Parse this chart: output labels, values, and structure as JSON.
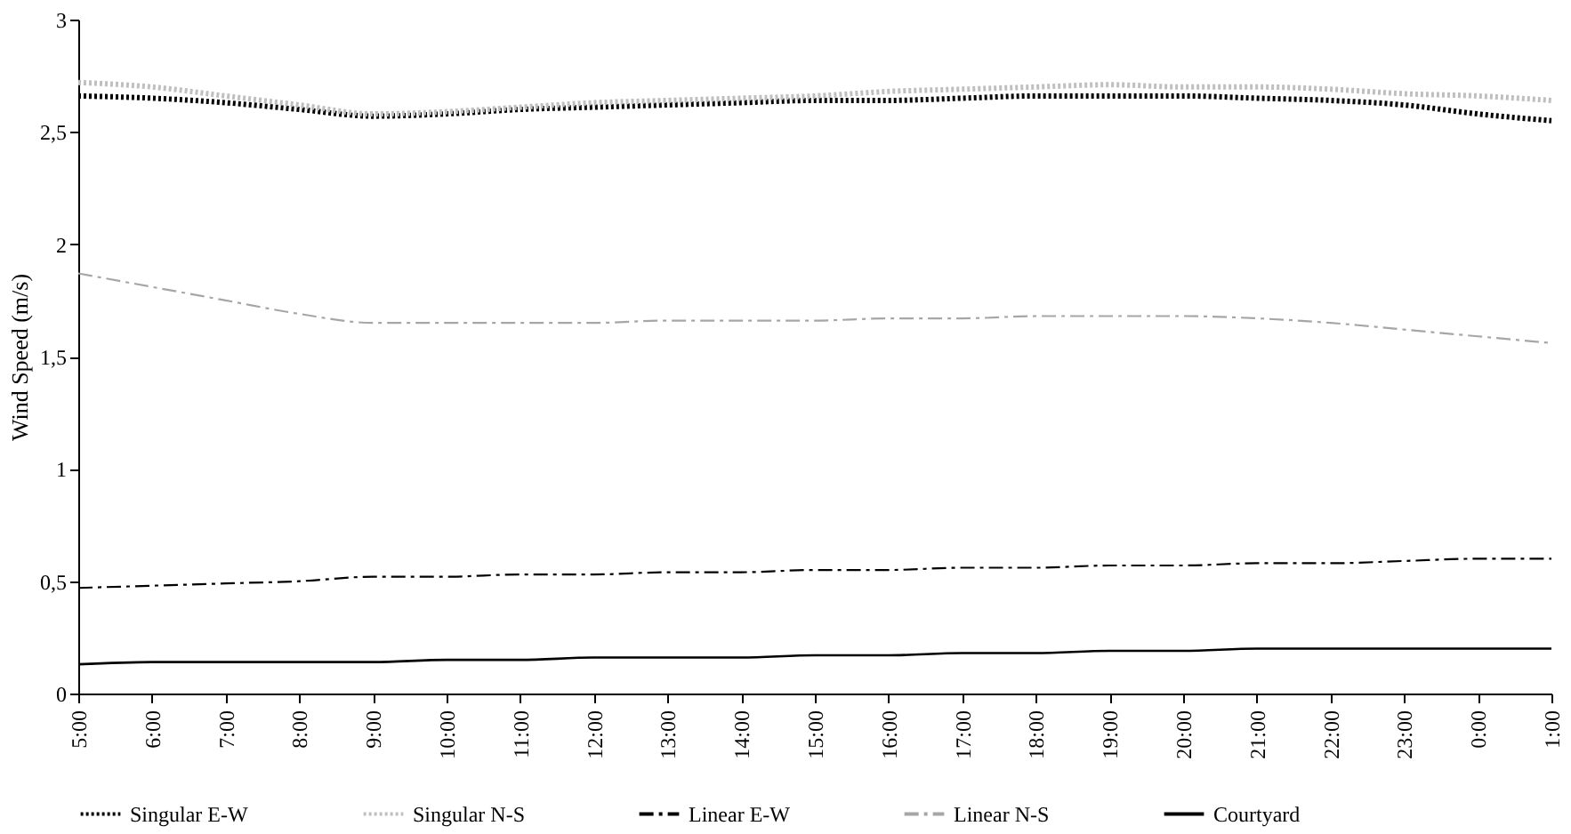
{
  "chart_data": {
    "type": "line",
    "ylabel": "Wind Speed (m/s)",
    "categories": [
      "5:00",
      "6:00",
      "7:00",
      "8:00",
      "9:00",
      "10:00",
      "11:00",
      "12:00",
      "13:00",
      "14:00",
      "15:00",
      "16:00",
      "17:00",
      "18:00",
      "19:00",
      "20:00",
      "21:00",
      "22:00",
      "23:00",
      "0:00",
      "1:00"
    ],
    "series": [
      {
        "name": "Singular E-W",
        "color": "#000000",
        "line_style": "dotted",
        "values": [
          2.66,
          2.65,
          2.63,
          2.6,
          2.57,
          2.58,
          2.6,
          2.61,
          2.62,
          2.63,
          2.64,
          2.64,
          2.65,
          2.66,
          2.66,
          2.66,
          2.65,
          2.64,
          2.62,
          2.58,
          2.55
        ]
      },
      {
        "name": "Singular N-S",
        "color": "#bfbfbf",
        "line_style": "dotted",
        "values": [
          2.72,
          2.7,
          2.66,
          2.62,
          2.58,
          2.59,
          2.61,
          2.63,
          2.64,
          2.65,
          2.66,
          2.68,
          2.69,
          2.7,
          2.71,
          2.7,
          2.7,
          2.69,
          2.67,
          2.66,
          2.64
        ]
      },
      {
        "name": "Linear E-W",
        "color": "#000000",
        "line_style": "dashed",
        "values": [
          0.47,
          0.48,
          0.49,
          0.5,
          0.52,
          0.52,
          0.53,
          0.53,
          0.54,
          0.54,
          0.55,
          0.55,
          0.56,
          0.56,
          0.57,
          0.57,
          0.58,
          0.58,
          0.59,
          0.6,
          0.6
        ]
      },
      {
        "name": "Linear N-S",
        "color": "#a6a6a6",
        "line_style": "dashed",
        "values": [
          1.87,
          1.81,
          1.75,
          1.69,
          1.65,
          1.65,
          1.65,
          1.65,
          1.66,
          1.66,
          1.66,
          1.67,
          1.67,
          1.68,
          1.68,
          1.68,
          1.67,
          1.65,
          1.62,
          1.59,
          1.56
        ]
      },
      {
        "name": "Courtyard",
        "color": "#000000",
        "line_style": "solid",
        "values": [
          0.13,
          0.14,
          0.14,
          0.14,
          0.14,
          0.15,
          0.15,
          0.16,
          0.16,
          0.16,
          0.17,
          0.17,
          0.18,
          0.18,
          0.19,
          0.19,
          0.2,
          0.2,
          0.2,
          0.2,
          0.2
        ]
      }
    ],
    "ylim": [
      0,
      3
    ],
    "yticks": [
      0,
      {
        "value": 0.5,
        "label": "0,5"
      },
      1,
      {
        "value": 1.5,
        "label": "1,5"
      },
      2,
      {
        "value": 2.5,
        "label": "2,5"
      },
      3
    ],
    "grid": false,
    "legend": "bottom"
  }
}
